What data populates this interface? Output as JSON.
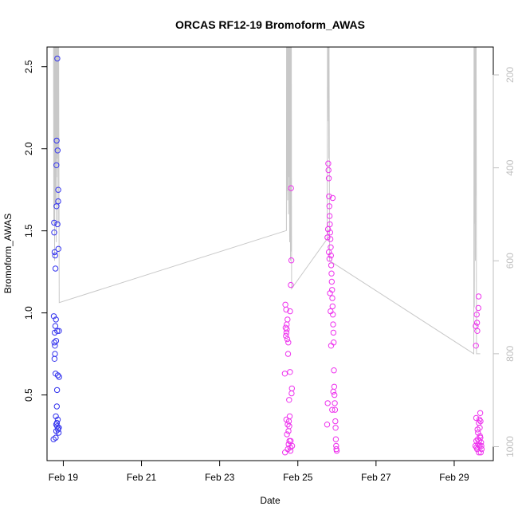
{
  "chart_data": {
    "type": "scatter",
    "title": "ORCAS RF12-19 Bromoform_AWAS",
    "xlabel": "Date",
    "ylabel": "Bromoform_AWAS",
    "xlim": [
      "2016-02-18T14:00",
      "2016-03-01T00:00"
    ],
    "ylim": [
      0.1,
      2.62
    ],
    "x_ticks": [
      {
        "date": "2016-02-19T00:00",
        "label": "Feb 19"
      },
      {
        "date": "2016-02-21T00:00",
        "label": "Feb 21"
      },
      {
        "date": "2016-02-23T00:00",
        "label": "Feb 23"
      },
      {
        "date": "2016-02-25T00:00",
        "label": "Feb 25"
      },
      {
        "date": "2016-02-27T00:00",
        "label": "Feb 27"
      },
      {
        "date": "2016-02-29T00:00",
        "label": "Feb 29"
      }
    ],
    "y_ticks": [
      0.5,
      1.0,
      1.5,
      2.0,
      2.5
    ],
    "y_tick_labels": [
      "0.5",
      "1.0",
      "1.5",
      "2.0",
      "2.5"
    ],
    "y2_ticks": [
      200,
      400,
      600,
      800,
      1000
    ],
    "y2_tick_labels": [
      "200",
      "400",
      "600",
      "800",
      "1000"
    ],
    "y2_axis": {
      "lim": [
        1030,
        140
      ],
      "reversed": true,
      "color": "#bfbfbf"
    },
    "grid": false,
    "legend": "none",
    "series": [
      {
        "color": "#3333ee",
        "marker": "open-circle",
        "points": [
          [
            "2016-02-18T18:00",
            0.23
          ],
          [
            "2016-02-18T18:10",
            0.98
          ],
          [
            "2016-02-18T18:20",
            1.55
          ],
          [
            "2016-02-18T18:25",
            1.49
          ],
          [
            "2016-02-18T18:30",
            0.82
          ],
          [
            "2016-02-18T18:35",
            0.72
          ],
          [
            "2016-02-18T18:40",
            1.37
          ],
          [
            "2016-02-18T18:45",
            0.88
          ],
          [
            "2016-02-18T18:50",
            0.8
          ],
          [
            "2016-02-18T18:55",
            0.75
          ],
          [
            "2016-02-18T19:00",
            1.35
          ],
          [
            "2016-02-18T19:05",
            0.92
          ],
          [
            "2016-02-18T19:10",
            1.27
          ],
          [
            "2016-02-18T19:15",
            0.63
          ],
          [
            "2016-02-18T19:20",
            0.24
          ],
          [
            "2016-02-18T19:25",
            0.37
          ],
          [
            "2016-02-18T19:30",
            0.96
          ],
          [
            "2016-02-18T19:35",
            0.83
          ],
          [
            "2016-02-18T19:40",
            0.28
          ],
          [
            "2016-02-18T19:45",
            1.9
          ],
          [
            "2016-02-18T19:50",
            1.65
          ],
          [
            "2016-02-18T19:55",
            2.05
          ],
          [
            "2016-02-18T20:00",
            0.43
          ],
          [
            "2016-02-18T20:05",
            0.33
          ],
          [
            "2016-02-18T20:10",
            0.53
          ],
          [
            "2016-02-18T20:15",
            0.89
          ],
          [
            "2016-02-18T20:20",
            2.55
          ],
          [
            "2016-02-18T20:25",
            1.54
          ],
          [
            "2016-02-18T20:30",
            1.99
          ],
          [
            "2016-02-18T20:35",
            0.35
          ],
          [
            "2016-02-18T20:40",
            0.62
          ],
          [
            "2016-02-18T20:45",
            0.29
          ],
          [
            "2016-02-18T20:50",
            1.68
          ],
          [
            "2016-02-18T20:55",
            1.75
          ],
          [
            "2016-02-18T21:00",
            1.39
          ],
          [
            "2016-02-18T21:05",
            0.3
          ],
          [
            "2016-02-18T21:10",
            0.27
          ],
          [
            "2016-02-18T21:15",
            0.3
          ],
          [
            "2016-02-18T21:20",
            0.89
          ],
          [
            "2016-02-18T21:25",
            0.61
          ],
          [
            "2016-02-18T19:38",
            0.32
          ],
          [
            "2016-02-18T20:12",
            0.31
          ]
        ]
      },
      {
        "color": "#ee33ee",
        "marker": "open-circle",
        "points": [
          [
            "2016-02-24T16:00",
            0.63
          ],
          [
            "2016-02-24T16:10",
            0.15
          ],
          [
            "2016-02-24T16:20",
            1.05
          ],
          [
            "2016-02-24T16:30",
            0.91
          ],
          [
            "2016-02-24T16:40",
            0.86
          ],
          [
            "2016-02-24T16:50",
            1.02
          ],
          [
            "2016-02-24T17:00",
            0.88
          ],
          [
            "2016-02-24T17:10",
            0.93
          ],
          [
            "2016-02-24T17:20",
            0.26
          ],
          [
            "2016-02-24T17:30",
            0.84
          ],
          [
            "2016-02-24T17:40",
            0.96
          ],
          [
            "2016-02-24T17:50",
            0.17
          ],
          [
            "2016-02-24T18:00",
            0.75
          ],
          [
            "2016-02-24T18:10",
            0.82
          ],
          [
            "2016-02-24T18:20",
            0.2
          ],
          [
            "2016-02-24T18:30",
            0.34
          ],
          [
            "2016-02-24T18:40",
            0.47
          ],
          [
            "2016-02-24T18:50",
            0.22
          ],
          [
            "2016-02-24T19:00",
            0.37
          ],
          [
            "2016-02-24T19:10",
            0.64
          ],
          [
            "2016-02-24T19:20",
            0.18
          ],
          [
            "2016-02-24T19:30",
            0.16
          ],
          [
            "2016-02-24T19:40",
            1.17
          ],
          [
            "2016-02-24T19:50",
            1.76
          ],
          [
            "2016-02-24T20:00",
            1.32
          ],
          [
            "2016-02-24T20:10",
            0.51
          ],
          [
            "2016-02-24T20:20",
            0.54
          ],
          [
            "2016-02-24T20:30",
            0.19
          ],
          [
            "2016-02-24T17:45",
            0.32
          ],
          [
            "2016-02-24T18:15",
            0.28
          ],
          [
            "2016-02-24T18:45",
            0.31
          ],
          [
            "2016-02-24T19:15",
            1.01
          ],
          [
            "2016-02-24T19:35",
            0.22
          ],
          [
            "2016-02-24T16:55",
            0.35
          ],
          [
            "2016-02-24T17:15",
            0.9
          ],
          [
            "2016-02-25T18:00",
            0.32
          ],
          [
            "2016-02-25T18:10",
            1.46
          ],
          [
            "2016-02-25T18:20",
            0.45
          ],
          [
            "2016-02-25T18:30",
            1.51
          ],
          [
            "2016-02-25T18:40",
            1.91
          ],
          [
            "2016-02-25T18:50",
            1.87
          ],
          [
            "2016-02-25T19:00",
            1.82
          ],
          [
            "2016-02-25T19:10",
            1.71
          ],
          [
            "2016-02-25T19:20",
            1.65
          ],
          [
            "2016-02-25T19:30",
            1.59
          ],
          [
            "2016-02-25T19:40",
            1.54
          ],
          [
            "2016-02-25T19:50",
            1.49
          ],
          [
            "2016-02-25T20:00",
            1.45
          ],
          [
            "2016-02-25T20:10",
            1.4
          ],
          [
            "2016-02-25T20:20",
            1.35
          ],
          [
            "2016-02-25T20:30",
            1.29
          ],
          [
            "2016-02-25T20:40",
            1.24
          ],
          [
            "2016-02-25T20:50",
            1.19
          ],
          [
            "2016-02-25T21:00",
            1.14
          ],
          [
            "2016-02-25T21:10",
            1.09
          ],
          [
            "2016-02-25T21:20",
            1.04
          ],
          [
            "2016-02-25T21:30",
            0.99
          ],
          [
            "2016-02-25T21:40",
            0.93
          ],
          [
            "2016-02-25T21:50",
            0.88
          ],
          [
            "2016-02-25T22:00",
            0.82
          ],
          [
            "2016-02-25T22:10",
            0.65
          ],
          [
            "2016-02-25T22:20",
            0.55
          ],
          [
            "2016-02-25T22:30",
            0.5
          ],
          [
            "2016-02-25T22:40",
            0.45
          ],
          [
            "2016-02-25T22:50",
            0.41
          ],
          [
            "2016-02-25T23:00",
            0.34
          ],
          [
            "2016-02-25T23:10",
            0.3
          ],
          [
            "2016-02-25T23:20",
            0.23
          ],
          [
            "2016-02-25T23:30",
            0.19
          ],
          [
            "2016-02-25T23:40",
            0.17
          ],
          [
            "2016-02-25T23:50",
            0.16
          ],
          [
            "2016-02-25T19:05",
            1.37
          ],
          [
            "2016-02-25T19:25",
            1.33
          ],
          [
            "2016-02-25T19:45",
            1.12
          ],
          [
            "2016-02-25T20:05",
            1.01
          ],
          [
            "2016-02-25T20:25",
            0.8
          ],
          [
            "2016-02-25T21:05",
            0.41
          ],
          [
            "2016-02-25T21:25",
            1.7
          ],
          [
            "2016-02-25T21:45",
            0.52
          ],
          [
            "2016-02-29T13:00",
            0.19
          ],
          [
            "2016-02-29T13:10",
            0.92
          ],
          [
            "2016-02-29T13:20",
            0.8
          ],
          [
            "2016-02-29T13:30",
            0.36
          ],
          [
            "2016-02-29T13:40",
            0.18
          ],
          [
            "2016-02-29T13:50",
            0.99
          ],
          [
            "2016-02-29T14:00",
            0.94
          ],
          [
            "2016-02-29T14:10",
            0.89
          ],
          [
            "2016-02-29T14:20",
            0.29
          ],
          [
            "2016-02-29T14:30",
            0.23
          ],
          [
            "2016-02-29T14:40",
            0.2
          ],
          [
            "2016-02-29T14:50",
            1.03
          ],
          [
            "2016-02-29T15:00",
            1.1
          ],
          [
            "2016-02-29T15:10",
            0.15
          ],
          [
            "2016-02-29T15:20",
            0.22
          ],
          [
            "2016-02-29T15:30",
            0.35
          ],
          [
            "2016-02-29T15:40",
            0.3
          ],
          [
            "2016-02-29T15:50",
            0.25
          ],
          [
            "2016-02-29T16:00",
            0.39
          ],
          [
            "2016-02-29T16:10",
            0.34
          ],
          [
            "2016-02-29T16:20",
            0.15
          ],
          [
            "2016-02-29T16:30",
            0.21
          ],
          [
            "2016-02-29T16:40",
            0.19
          ],
          [
            "2016-02-29T16:50",
            0.17
          ],
          [
            "2016-02-29T13:35",
            0.22
          ],
          [
            "2016-02-29T14:05",
            0.17
          ],
          [
            "2016-02-29T14:35",
            0.27
          ],
          [
            "2016-02-29T15:05",
            0.33
          ],
          [
            "2016-02-29T15:35",
            0.19
          ],
          [
            "2016-02-29T16:05",
            0.24
          ]
        ]
      }
    ],
    "altitude_trace": {
      "color": "#c8c8c8",
      "axis": "y2",
      "points": [
        [
          "2016-02-18T18:00",
          140
        ],
        [
          "2016-02-18T18:10",
          520
        ],
        [
          "2016-02-18T18:15",
          140
        ],
        [
          "2016-02-18T18:25",
          400
        ],
        [
          "2016-02-18T18:30",
          140
        ],
        [
          "2016-02-18T18:40",
          600
        ],
        [
          "2016-02-18T18:45",
          140
        ],
        [
          "2016-02-18T18:55",
          350
        ],
        [
          "2016-02-18T19:00",
          140
        ],
        [
          "2016-02-18T19:10",
          480
        ],
        [
          "2016-02-18T19:15",
          140
        ],
        [
          "2016-02-18T19:25",
          300
        ],
        [
          "2016-02-18T19:30",
          140
        ],
        [
          "2016-02-18T19:40",
          560
        ],
        [
          "2016-02-18T19:45",
          140
        ],
        [
          "2016-02-18T19:55",
          420
        ],
        [
          "2016-02-18T20:00",
          140
        ],
        [
          "2016-02-18T20:10",
          380
        ],
        [
          "2016-02-18T20:15",
          140
        ],
        [
          "2016-02-18T20:25",
          250
        ],
        [
          "2016-02-18T20:35",
          140
        ],
        [
          "2016-02-18T20:45",
          520
        ],
        [
          "2016-02-18T20:50",
          140
        ],
        [
          "2016-02-18T21:00",
          400
        ],
        [
          "2016-02-18T21:10",
          140
        ],
        [
          "2016-02-18T21:30",
          690
        ],
        [
          "2016-02-24T17:00",
          535
        ],
        [
          "2016-02-24T17:05",
          140
        ],
        [
          "2016-02-24T17:15",
          450
        ],
        [
          "2016-02-24T17:20",
          140
        ],
        [
          "2016-02-24T17:30",
          380
        ],
        [
          "2016-02-24T17:35",
          140
        ],
        [
          "2016-02-24T17:45",
          470
        ],
        [
          "2016-02-24T17:50",
          140
        ],
        [
          "2016-02-24T18:00",
          320
        ],
        [
          "2016-02-24T18:05",
          140
        ],
        [
          "2016-02-24T18:15",
          500
        ],
        [
          "2016-02-24T18:20",
          140
        ],
        [
          "2016-02-24T18:30",
          420
        ],
        [
          "2016-02-24T18:35",
          140
        ],
        [
          "2016-02-24T18:45",
          350
        ],
        [
          "2016-02-24T18:50",
          140
        ],
        [
          "2016-02-24T19:00",
          560
        ],
        [
          "2016-02-24T19:05",
          140
        ],
        [
          "2016-02-24T19:15",
          460
        ],
        [
          "2016-02-24T19:20",
          140
        ],
        [
          "2016-02-24T19:30",
          600
        ],
        [
          "2016-02-24T19:35",
          140
        ],
        [
          "2016-02-24T19:50",
          580
        ],
        [
          "2016-02-24T20:00",
          140
        ],
        [
          "2016-02-24T20:10",
          660
        ],
        [
          "2016-02-25T18:00",
          553
        ],
        [
          "2016-02-25T18:10",
          140
        ],
        [
          "2016-02-25T18:20",
          300
        ],
        [
          "2016-02-25T18:30",
          140
        ],
        [
          "2016-02-25T18:40",
          250
        ],
        [
          "2016-02-25T18:50",
          140
        ],
        [
          "2016-02-25T19:00",
          380
        ],
        [
          "2016-02-25T19:10",
          140
        ],
        [
          "2016-02-25T19:20",
          410
        ],
        [
          "2016-02-25T19:30",
          600
        ],
        [
          "2016-02-29T12:00",
          800
        ],
        [
          "2016-02-29T12:10",
          140
        ],
        [
          "2016-02-29T12:20",
          700
        ],
        [
          "2016-02-29T12:30",
          140
        ],
        [
          "2016-02-29T12:40",
          520
        ],
        [
          "2016-02-29T12:50",
          140
        ],
        [
          "2016-02-29T13:00",
          600
        ],
        [
          "2016-02-29T13:10",
          140
        ],
        [
          "2016-02-29T13:20",
          460
        ],
        [
          "2016-02-29T13:30",
          140
        ],
        [
          "2016-02-29T13:40",
          800
        ],
        [
          "2016-02-29T16:00",
          800
        ]
      ]
    }
  }
}
